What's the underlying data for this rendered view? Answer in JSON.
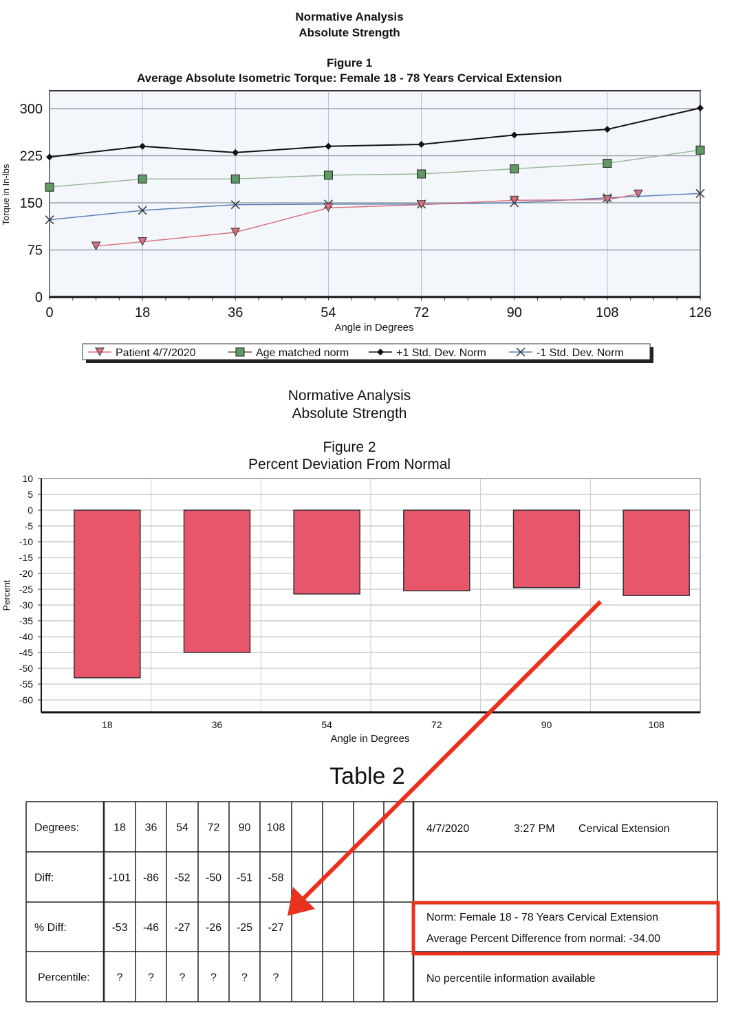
{
  "chart_data": [
    {
      "type": "line",
      "header": [
        "Normative Analysis",
        "Absolute Strength"
      ],
      "figure_label": "Figure 1",
      "title": "Average Absolute Isometric Torque:  Female 18 - 78 Years Cervical Extension",
      "xlabel": "Angle in Degrees",
      "ylabel": "Torque in In-lbs",
      "xlim": [
        0,
        126
      ],
      "ylim": [
        0,
        300
      ],
      "xticks": [
        "0",
        "18",
        "36",
        "54",
        "72",
        "90",
        "108",
        "126"
      ],
      "yticks": [
        "0",
        "75",
        "150",
        "225",
        "300"
      ],
      "grid": true,
      "legend_position": "bottom",
      "series": [
        {
          "name": "Patient 4/7/2020",
          "color": "#d9707f",
          "marker": "triangle-down",
          "x": [
            9,
            18,
            36,
            54,
            72,
            90,
            108,
            114
          ],
          "y": [
            81,
            88,
            103,
            142,
            147,
            154,
            155,
            164
          ]
        },
        {
          "name": "Age matched norm",
          "color": "#9bb89b",
          "marker": "square",
          "x": [
            0,
            18,
            36,
            54,
            72,
            90,
            108,
            126
          ],
          "y": [
            175,
            188,
            188,
            194,
            196,
            204,
            213,
            234
          ]
        },
        {
          "name": "+1 Std. Dev. Norm",
          "color": "#111111",
          "marker": "diamond",
          "x": [
            0,
            18,
            36,
            54,
            72,
            90,
            108,
            126
          ],
          "y": [
            223,
            240,
            230,
            240,
            243,
            258,
            267,
            301
          ]
        },
        {
          "name": "-1 Std. Dev. Norm",
          "color": "#5a7fb8",
          "marker": "x",
          "x": [
            0,
            18,
            36,
            54,
            72,
            90,
            108,
            126
          ],
          "y": [
            123,
            138,
            147,
            148,
            148,
            150,
            158,
            165
          ]
        }
      ]
    },
    {
      "type": "bar",
      "header": [
        "Normative Analysis",
        "Absolute Strength"
      ],
      "figure_label": "Figure 2",
      "title": "Percent Deviation From Normal",
      "xlabel": "Angle in Degrees",
      "ylabel": "Percent",
      "categories": [
        "18",
        "36",
        "54",
        "72",
        "90",
        "108"
      ],
      "values": [
        -53,
        -45,
        -26.5,
        -25.5,
        -24.5,
        -27
      ],
      "ylim": [
        -64,
        10
      ],
      "yticks": [
        "10",
        "5",
        "0",
        "-5",
        "-10",
        "-15",
        "-20",
        "-25",
        "-30",
        "-35",
        "-40",
        "-45",
        "-50",
        "-55",
        "-60"
      ],
      "bar_color": "#e8566c",
      "grid": true
    }
  ],
  "table": {
    "title": "Table 2",
    "rows": [
      {
        "label": "Degrees:",
        "values": [
          "18",
          "36",
          "54",
          "72",
          "90",
          "108"
        ]
      },
      {
        "label": "Diff:",
        "values": [
          "-101",
          "-86",
          "-52",
          "-50",
          "-51",
          "-58"
        ]
      },
      {
        "label": "% Diff:",
        "values": [
          "-53",
          "-46",
          "-27",
          "-26",
          "-25",
          "-27"
        ]
      },
      {
        "label": "Percentile:",
        "values": [
          "?",
          "?",
          "?",
          "?",
          "?",
          "?"
        ]
      }
    ],
    "info": {
      "date": "4/7/2020",
      "time": "3:27 PM",
      "test": "Cervical Extension",
      "norm": "Norm: Female  18 - 78 Years Cervical Extension",
      "avg": "Average Percent Difference from normal: -34.00",
      "percentile": "No percentile information available"
    }
  },
  "annotation_color": "#e8321e"
}
